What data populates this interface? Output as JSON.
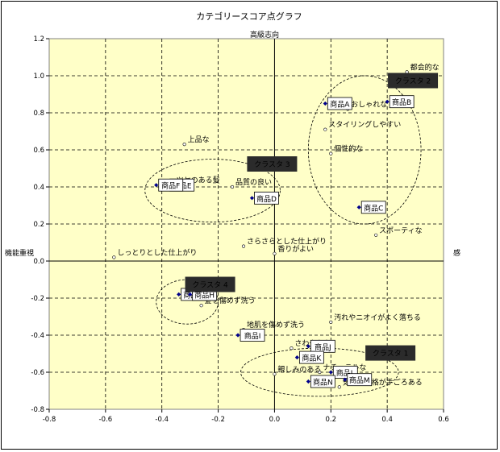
{
  "chart_data": {
    "type": "scatter",
    "title": "カテゴリースコア点グラフ",
    "axis_labels": {
      "top": "高級志向",
      "left": "機能重視",
      "right": "感"
    },
    "xlim": [
      -0.8,
      0.6
    ],
    "ylim": [
      -0.8,
      1.2
    ],
    "x_ticks": [
      "-0.8",
      "-0.6",
      "-0.4",
      "-0.2",
      "0.0",
      "0.2",
      "0.4",
      "0.6"
    ],
    "y_ticks": [
      "1.2",
      "1.0",
      "0.8",
      "0.6",
      "0.4",
      "0.2",
      "0.0",
      "-0.2",
      "-0.4",
      "-0.6",
      "-0.8"
    ],
    "grid": true,
    "series": [
      {
        "kind": "products",
        "points": [
          {
            "label": "商品A",
            "x": 0.18,
            "y": 0.85
          },
          {
            "label": "商品B",
            "x": 0.4,
            "y": 0.86
          },
          {
            "label": "商品C",
            "x": 0.3,
            "y": 0.29
          },
          {
            "label": "商品D",
            "x": -0.08,
            "y": 0.34
          },
          {
            "label": "商品E",
            "x": -0.38,
            "y": 0.41
          },
          {
            "label": "商品F",
            "x": -0.42,
            "y": 0.41
          },
          {
            "label": "商品G",
            "x": -0.34,
            "y": -0.18
          },
          {
            "label": "商品H",
            "x": -0.3,
            "y": -0.18
          },
          {
            "label": "商品I",
            "x": -0.13,
            "y": -0.4
          },
          {
            "label": "商品J",
            "x": 0.12,
            "y": -0.46
          },
          {
            "label": "商品K",
            "x": 0.08,
            "y": -0.52
          },
          {
            "label": "商品L",
            "x": 0.2,
            "y": -0.6
          },
          {
            "label": "商品M",
            "x": 0.25,
            "y": -0.64
          },
          {
            "label": "商品N",
            "x": 0.12,
            "y": -0.65
          }
        ]
      },
      {
        "kind": "attributes",
        "points": [
          {
            "label": "都会的な",
            "x": 0.47,
            "y": 1.02
          },
          {
            "label": "おしゃれな",
            "x": 0.26,
            "y": 0.82
          },
          {
            "label": "スタイリングしやすい",
            "x": 0.18,
            "y": 0.71
          },
          {
            "label": "個性的な",
            "x": 0.2,
            "y": 0.58
          },
          {
            "label": "上品な",
            "x": -0.32,
            "y": 0.63
          },
          {
            "label": "ツヤのある髪",
            "x": -0.36,
            "y": 0.41
          },
          {
            "label": "品質の良い",
            "x": -0.15,
            "y": 0.4
          },
          {
            "label": "スポーティな",
            "x": 0.36,
            "y": 0.14
          },
          {
            "label": "さらさらとした仕上がり",
            "x": -0.11,
            "y": 0.08
          },
          {
            "label": "香りがよい",
            "x": 0.0,
            "y": 0.04
          },
          {
            "label": "しっとりとした仕上がり",
            "x": -0.57,
            "y": 0.02
          },
          {
            "label": "髪を傷めず洗う",
            "x": -0.26,
            "y": -0.24
          },
          {
            "label": "地肌を傷めず洗う",
            "x": -0.11,
            "y": -0.37
          },
          {
            "label": "汚れやニオイがよく落ちる",
            "x": 0.2,
            "y": -0.33
          },
          {
            "label": "さわやかな",
            "x": 0.06,
            "y": -0.47
          },
          {
            "label": "親しみのある",
            "x": 0.0,
            "y": -0.61
          },
          {
            "label": "ナチュラルな",
            "x": 0.16,
            "y": -0.6
          },
          {
            "label": "気軽な価格が手ごろある",
            "x": 0.23,
            "y": -0.68
          }
        ]
      }
    ],
    "clusters": [
      {
        "label": "クラスタ 1",
        "cx": 0.16,
        "cy": -0.6,
        "rx": 0.28,
        "ry": 0.13
      },
      {
        "label": "クラスタ 2",
        "cx": 0.32,
        "cy": 0.6,
        "rx": 0.2,
        "ry": 0.4
      },
      {
        "label": "クラスタ 3",
        "cx": -0.22,
        "cy": 0.38,
        "rx": 0.24,
        "ry": 0.17
      },
      {
        "label": "クラスタ 4",
        "cx": -0.31,
        "cy": -0.22,
        "rx": 0.11,
        "ry": 0.12
      }
    ]
  }
}
